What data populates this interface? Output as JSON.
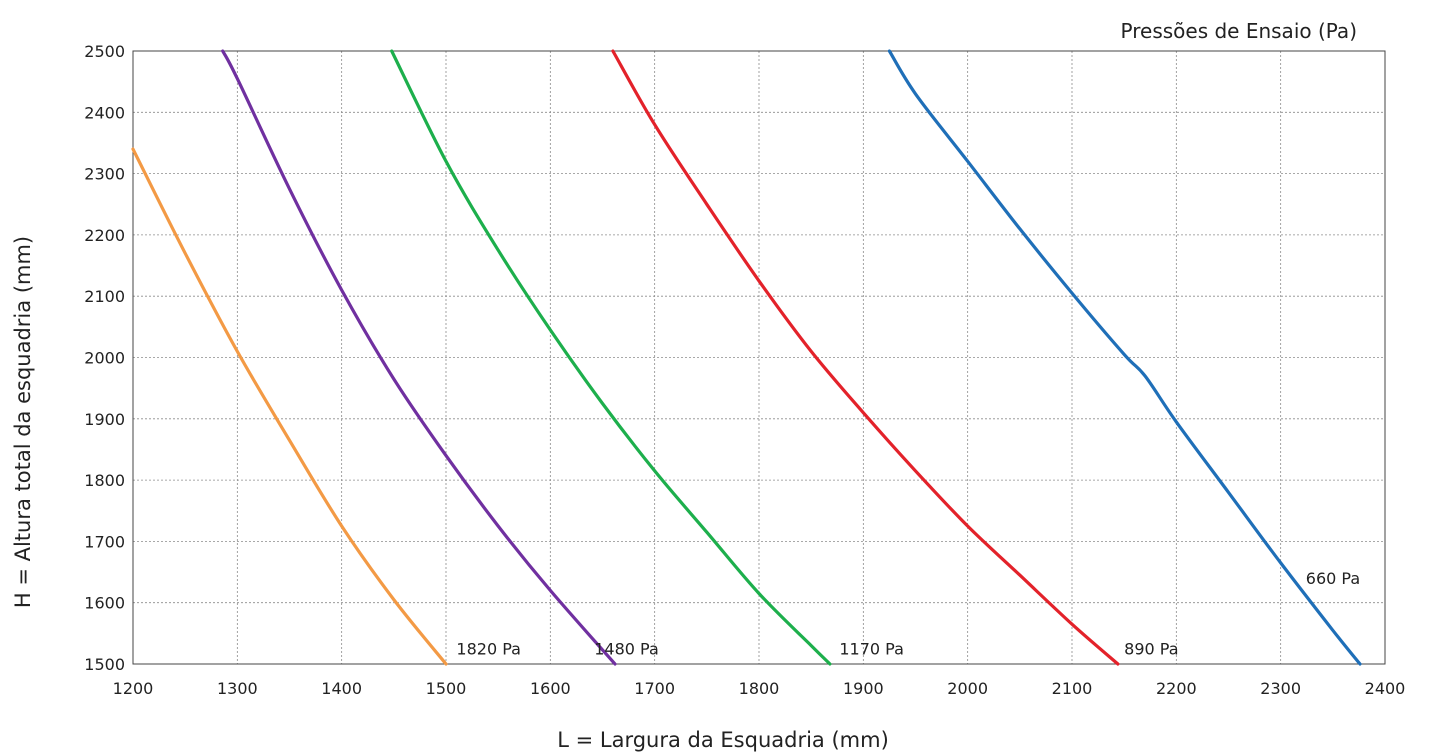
{
  "chart_data": {
    "type": "line",
    "title": "",
    "legend_title": "Pressões de Ensaio  (Pa)",
    "xlabel": "L = Largura da Esquadria (mm)",
    "ylabel": "H = Altura total da esquadria (mm)",
    "xlim": [
      1200,
      2400
    ],
    "ylim": [
      1500,
      2500
    ],
    "x_ticks": [
      1200,
      1300,
      1400,
      1500,
      1600,
      1700,
      1800,
      1900,
      2000,
      2100,
      2200,
      2300,
      2400
    ],
    "y_ticks": [
      1500,
      1600,
      1700,
      1800,
      1900,
      2000,
      2100,
      2200,
      2300,
      2400,
      2500
    ],
    "grid": true,
    "legend_placement": "inline labels at curve ends",
    "series": [
      {
        "name": "1820 Pa",
        "label": "1820 Pa",
        "color": "#f39a45",
        "x": [
          1200,
          1250,
          1300,
          1350,
          1400,
          1450,
          1500
        ],
        "y": [
          2340,
          2170,
          2010,
          1865,
          1725,
          1605,
          1500
        ]
      },
      {
        "name": "1480 Pa",
        "label": "1480 Pa",
        "color": "#7030a0",
        "x": [
          1286,
          1300,
          1350,
          1400,
          1450,
          1500,
          1550,
          1600,
          1662
        ],
        "y": [
          2500,
          2455,
          2275,
          2110,
          1965,
          1840,
          1725,
          1620,
          1500
        ]
      },
      {
        "name": "1170 Pa",
        "label": "1170 Pa",
        "color": "#1daf4c",
        "x": [
          1448,
          1500,
          1550,
          1600,
          1650,
          1700,
          1750,
          1800,
          1850,
          1868
        ],
        "y": [
          2500,
          2320,
          2175,
          2045,
          1925,
          1815,
          1715,
          1615,
          1530,
          1500
        ]
      },
      {
        "name": "890 Pa",
        "label": "890 Pa",
        "color": "#e3222a",
        "x": [
          1660,
          1700,
          1750,
          1800,
          1850,
          1900,
          1950,
          2000,
          2050,
          2100,
          2144
        ],
        "y": [
          2500,
          2380,
          2250,
          2125,
          2010,
          1910,
          1815,
          1725,
          1645,
          1565,
          1500
        ]
      },
      {
        "name": "660 Pa",
        "label": "660 Pa",
        "color": "#1f6fb8",
        "x": [
          1925,
          1950,
          2000,
          2050,
          2100,
          2150,
          2170,
          2200,
          2250,
          2300,
          2350,
          2376
        ],
        "y": [
          2500,
          2430,
          2320,
          2210,
          2105,
          2005,
          1970,
          1895,
          1780,
          1665,
          1555,
          1500
        ]
      }
    ]
  }
}
